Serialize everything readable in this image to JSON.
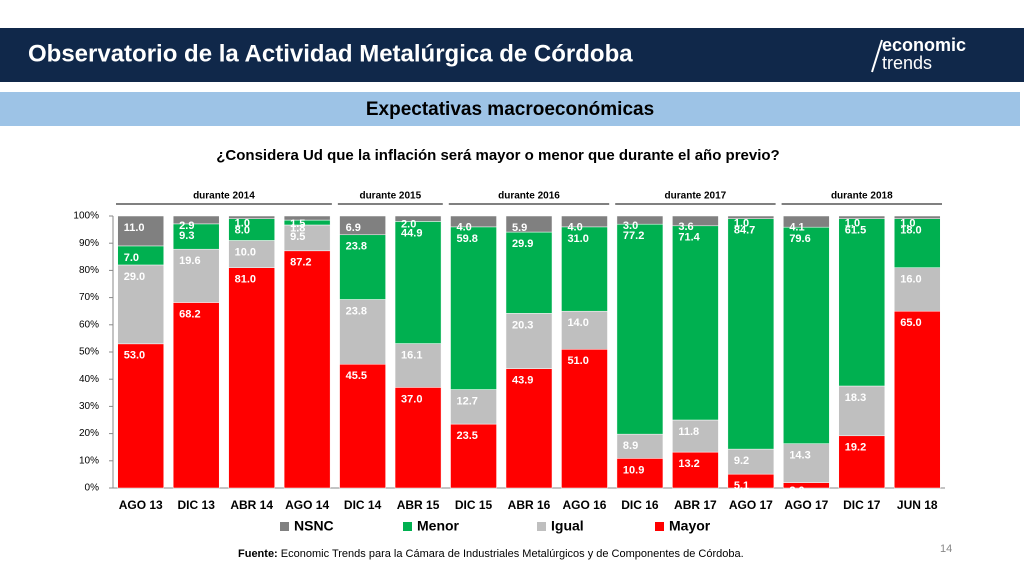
{
  "header": {
    "title": "Observatorio de la Actividad Metalúrgica de Córdoba",
    "logo_top": "economic",
    "logo_bottom": "trends"
  },
  "chart_data": {
    "type": "stacked_bar",
    "title": "Expectativas macroeconómicas",
    "subtitle": "¿Considera Ud que la inflación será mayor o menor que durante el año previo?",
    "groups": [
      "durante 2014",
      "durante 2015",
      "durante 2016",
      "durante 2017",
      "durante 2018"
    ],
    "categories": [
      "AGO 13",
      "DIC 13",
      "ABR 14",
      "AGO 14",
      "DIC 14",
      "ABR 15",
      "DIC 15",
      "ABR 16",
      "AGO 16",
      "DIC 16",
      "ABR 17",
      "AGO 17",
      "AGO 17",
      "DIC 17",
      "JUN 18"
    ],
    "series": [
      {
        "name": "NSNC",
        "color": "#808080",
        "values": [
          11,
          2.9,
          1,
          1.5,
          6.9,
          2,
          4,
          5.9,
          4,
          3,
          3.6,
          1,
          4.1,
          1,
          1
        ],
        "value_labels": [
          "11.0",
          "2.9",
          "1.0",
          "1.5",
          "6.9",
          "2.0",
          "4.0",
          "5.9",
          "4.0",
          "3.0",
          "3.6",
          "1.0",
          "4.1",
          "1.0",
          "1.0"
        ]
      },
      {
        "name": "Menor",
        "color": "#00b050",
        "values": [
          7,
          9.3,
          8,
          1.8,
          23.8,
          44.9,
          59.8,
          29.9,
          31,
          77.2,
          71.4,
          84.7,
          79.6,
          61.5,
          18
        ],
        "value_labels": [
          "7.0",
          "9.3",
          "8.0",
          "1.8",
          "23.8",
          "44.9",
          "59.8",
          "29.9",
          "31.0",
          "77.2",
          "71.4",
          "84.7",
          "79.6",
          "61.5",
          "18.0"
        ]
      },
      {
        "name": "Igual",
        "color": "#bfbfbf",
        "values": [
          29,
          19.6,
          10,
          9.5,
          23.8,
          16.1,
          12.7,
          20.3,
          14,
          8.9,
          11.8,
          9.2,
          14.3,
          18.3,
          16
        ],
        "value_labels": [
          "29.0",
          "19.6",
          "10.0",
          "9.5",
          "23.8",
          "16.1",
          "12.7",
          "20.3",
          "14.0",
          "8.9",
          "11.8",
          "9.2",
          "14.3",
          "18.3",
          "16.0"
        ]
      },
      {
        "name": "Mayor",
        "color": "#ff0000",
        "values": [
          53,
          68.2,
          81,
          87.2,
          45.5,
          37,
          23.5,
          43.9,
          51,
          10.9,
          13.2,
          5.1,
          2,
          19.2,
          65
        ],
        "value_labels": [
          "53.0",
          "68.2",
          "81.0",
          "87.2",
          "45.5",
          "37.0",
          "23.5",
          "43.9",
          "51.0",
          "10.9",
          "13.2",
          "5.1",
          "2.0",
          "19.2",
          "65.0"
        ]
      }
    ],
    "ylim": [
      0,
      100
    ],
    "yticks": [
      {
        "value": 0,
        "label": "0%"
      },
      {
        "value": 10,
        "label": "10%"
      },
      {
        "value": 20,
        "label": "20%"
      },
      {
        "value": 30,
        "label": "30%"
      },
      {
        "value": 40,
        "label": "40%"
      },
      {
        "value": 50,
        "label": "50%"
      },
      {
        "value": 60,
        "label": "60%"
      },
      {
        "value": 70,
        "label": "70%"
      },
      {
        "value": 80,
        "label": "80%"
      },
      {
        "value": 90,
        "label": "90%"
      },
      {
        "value": 100,
        "label": "100%"
      }
    ],
    "legend": "bottom"
  },
  "footer": {
    "source_label": "Fuente:",
    "source": " Economic Trends para la Cámara de Industriales Metalúrgicos y de Componentes de Córdoba.",
    "page": "14"
  }
}
